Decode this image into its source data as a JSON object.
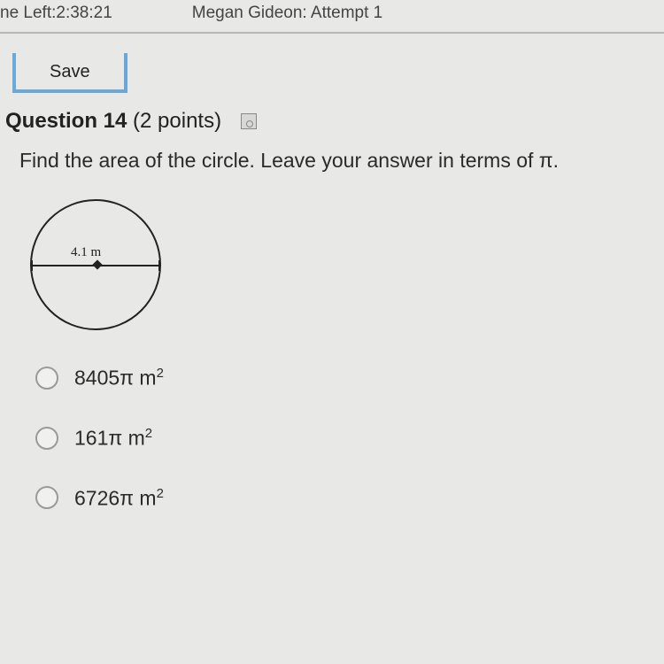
{
  "header": {
    "time_left_label": "ne Left:2:38:21",
    "student_attempt": "Megan Gideon: Attempt 1"
  },
  "toolbar": {
    "save_label": "Save"
  },
  "question": {
    "number_label": "Question 14",
    "points_label": "(2 points)",
    "prompt": "Find the area of the circle. Leave your answer in terms of π."
  },
  "figure": {
    "type": "circle-with-diameter",
    "diameter_label": "4.1 m",
    "stroke_color": "#222222",
    "diameter_value": 4.1,
    "units": "m"
  },
  "options": [
    {
      "value": "8405",
      "unit_prefix": "π  m",
      "exp": "2"
    },
    {
      "value": "161",
      "unit_prefix": "π  m",
      "exp": "2"
    },
    {
      "value": "6726",
      "unit_prefix": "π  m",
      "exp": "2"
    }
  ],
  "colors": {
    "background": "#e8e8e6",
    "accent": "#6aa8d8",
    "text": "#2a2a2a",
    "border": "#b8b8b6"
  }
}
